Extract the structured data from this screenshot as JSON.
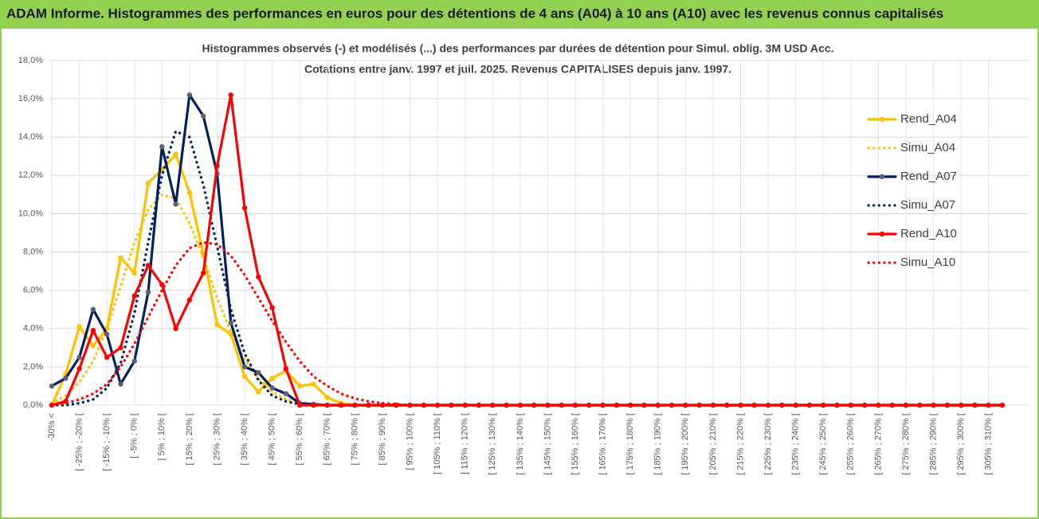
{
  "chart_data": {
    "type": "line",
    "header": "ADAM Informe. Histogrammes des performances en euros pour des détentions de 4 ans (A04) à 10 ans (A10) avec les revenus connus capitalisés",
    "title": "Histogrammes observés (-) et modélisés (...) des performances par durées de détention pour Simul. oblig. 3M USD Acc.",
    "subtitle": "Cotations entre janv. 1997 et juil. 2025. Revenus CAPITALISES depuis janv. 1997.",
    "categories": [
      "-30% <",
      null,
      "[ -25% ; -20% [",
      null,
      "[ -15% ; -10% [",
      null,
      "[ -5% ; 0% [",
      null,
      "[ 5% ; 10% [",
      null,
      "[ 15% ; 20% [",
      null,
      "[ 25% ; 30% [",
      null,
      "[ 35% ; 40% [",
      null,
      "[ 45% ; 50% [",
      null,
      "[ 55% ; 60% [",
      null,
      "[ 65% ; 70% [",
      null,
      "[ 75% ; 80% [",
      null,
      "[ 85% ; 90% [",
      null,
      "[ 95% ; 100% [",
      null,
      "[ 105% ; 110% [",
      null,
      "[ 115% ; 120% [",
      null,
      "[ 125% ; 130% [",
      null,
      "[ 135% ; 140% [",
      null,
      "[ 145% ; 150% [",
      null,
      "[ 155% ; 160% [",
      null,
      "[ 165% ; 170% [",
      null,
      "[ 175% ; 180% [",
      null,
      "[ 185% ; 190% [",
      null,
      "[ 195% ; 200% [",
      null,
      "[ 205% ; 210% [",
      null,
      "[ 215% ; 220% [",
      null,
      "[ 225% ; 230% [",
      null,
      "[ 235% ; 240% [",
      null,
      "[ 245% ; 250% [",
      null,
      "[ 255% ; 260% [",
      null,
      "[ 265% ; 270% [",
      null,
      "[ 275% ; 280% [",
      null,
      "[ 285% ; 290% [",
      null,
      "[ 295% ; 300% [",
      null,
      "[ 305% ; 310% [",
      null
    ],
    "series": [
      {
        "name": "Rend_A04",
        "color": "#ffc000",
        "style": "solid",
        "markers": true,
        "values": [
          0,
          1.6,
          4.1,
          3.1,
          4.0,
          7.7,
          6.9,
          11.6,
          12.3,
          13.1,
          11.1,
          7.9,
          4.2,
          3.7,
          1.5,
          0.7,
          1.4,
          1.8,
          1.0,
          1.1,
          0.4,
          0.1,
          0,
          0,
          0,
          0,
          0,
          0,
          0,
          0,
          0,
          0,
          0,
          0,
          0,
          0,
          0,
          0,
          0,
          0,
          0,
          0,
          0,
          0,
          0,
          0,
          0,
          0,
          0,
          0,
          0,
          0,
          0,
          0,
          0,
          0,
          0,
          0,
          0,
          0,
          0,
          0,
          0,
          0,
          0,
          0,
          0,
          0,
          0,
          0
        ]
      },
      {
        "name": "Simu_A04",
        "color": "#ffc000",
        "style": "dotted",
        "markers": false,
        "values": [
          0.1,
          0.5,
          1.2,
          2.3,
          4.0,
          6.2,
          8.5,
          10.2,
          11.0,
          10.8,
          9.5,
          7.7,
          5.6,
          3.8,
          2.4,
          1.4,
          0.7,
          0.3,
          0.15,
          0.05,
          0,
          0,
          0,
          0,
          0,
          0,
          0,
          0,
          0,
          0,
          0,
          0,
          0,
          0,
          0,
          0,
          0,
          0,
          0,
          0,
          0,
          0,
          0,
          0,
          0,
          0,
          0,
          0,
          0,
          0,
          0,
          0,
          0,
          0,
          0,
          0,
          0,
          0,
          0,
          0,
          0,
          0,
          0,
          0,
          0,
          0,
          0,
          0,
          0,
          0
        ]
      },
      {
        "name": "Rend_A07",
        "color": "#002060",
        "marker_color": "#5a6275",
        "style": "solid",
        "markers": true,
        "values": [
          1.0,
          1.4,
          2.5,
          5.0,
          3.7,
          1.1,
          2.3,
          5.9,
          13.5,
          10.5,
          16.2,
          15.1,
          12.1,
          4.3,
          2.0,
          1.7,
          0.9,
          0.6,
          0.1,
          0.05,
          0,
          0,
          0,
          0,
          0,
          0,
          0,
          0,
          0,
          0,
          0,
          0,
          0,
          0,
          0,
          0,
          0,
          0,
          0,
          0,
          0,
          0,
          0,
          0,
          0,
          0,
          0,
          0,
          0,
          0,
          0,
          0,
          0,
          0,
          0,
          0,
          0,
          0,
          0,
          0,
          0,
          0,
          0,
          0,
          0,
          0,
          0,
          0,
          0,
          0
        ]
      },
      {
        "name": "Simu_A07",
        "color": "#002060",
        "style": "dotted",
        "markers": false,
        "values": [
          0,
          0,
          0.1,
          0.3,
          0.9,
          2.2,
          4.8,
          8.5,
          12.0,
          14.3,
          14.0,
          11.5,
          8.3,
          5.0,
          2.7,
          1.3,
          0.5,
          0.2,
          0.05,
          0,
          0,
          0,
          0,
          0,
          0,
          0,
          0,
          0,
          0,
          0,
          0,
          0,
          0,
          0,
          0,
          0,
          0,
          0,
          0,
          0,
          0,
          0,
          0,
          0,
          0,
          0,
          0,
          0,
          0,
          0,
          0,
          0,
          0,
          0,
          0,
          0,
          0,
          0,
          0,
          0,
          0,
          0,
          0,
          0,
          0,
          0,
          0,
          0,
          0,
          0
        ]
      },
      {
        "name": "Rend_A10",
        "color": "#ff0000",
        "style": "solid",
        "markers": true,
        "values": [
          0,
          0.2,
          1.9,
          3.9,
          2.5,
          3.0,
          5.7,
          7.3,
          6.3,
          4.0,
          5.5,
          6.9,
          12.5,
          16.2,
          10.3,
          6.7,
          5.1,
          1.9,
          0,
          0,
          0,
          0,
          0,
          0,
          0,
          0,
          0,
          0,
          0,
          0,
          0,
          0,
          0,
          0,
          0,
          0,
          0,
          0,
          0,
          0,
          0,
          0,
          0,
          0,
          0,
          0,
          0,
          0,
          0,
          0,
          0,
          0,
          0,
          0,
          0,
          0,
          0,
          0,
          0,
          0,
          0,
          0,
          0,
          0,
          0,
          0,
          0,
          0,
          0,
          0
        ]
      },
      {
        "name": "Simu_A10",
        "color": "#ff0000",
        "style": "dotted",
        "markers": false,
        "values": [
          0,
          0.1,
          0.3,
          0.6,
          1.1,
          2.0,
          3.2,
          4.6,
          6.0,
          7.3,
          8.2,
          8.5,
          8.4,
          7.8,
          6.8,
          5.6,
          4.4,
          3.3,
          2.3,
          1.5,
          1.0,
          0.6,
          0.35,
          0.2,
          0.1,
          0.05,
          0,
          0,
          0,
          0,
          0,
          0,
          0,
          0,
          0,
          0,
          0,
          0,
          0,
          0,
          0,
          0,
          0,
          0,
          0,
          0,
          0,
          0,
          0,
          0,
          0,
          0,
          0,
          0,
          0,
          0,
          0,
          0,
          0,
          0,
          0,
          0,
          0,
          0,
          0,
          0,
          0,
          0,
          0,
          0
        ]
      }
    ],
    "ylim": [
      0,
      18
    ],
    "yticks": [
      {
        "value": 0,
        "label": "0,0%"
      },
      {
        "value": 2,
        "label": "2,0%"
      },
      {
        "value": 4,
        "label": "4,0%"
      },
      {
        "value": 6,
        "label": "6,0%"
      },
      {
        "value": 8,
        "label": "8,0%"
      },
      {
        "value": 10,
        "label": "10,0%"
      },
      {
        "value": 12,
        "label": "12,0%"
      },
      {
        "value": 14,
        "label": "14,0%"
      },
      {
        "value": 16,
        "label": "16,0%"
      },
      {
        "value": 18,
        "label": "18,0%"
      }
    ],
    "grid": true,
    "legend": "right"
  }
}
